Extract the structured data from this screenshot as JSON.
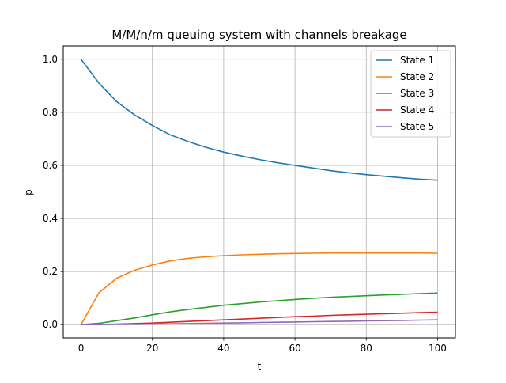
{
  "chart_data": {
    "type": "line",
    "title": "M/M/n/m queuing system with channels breakage",
    "xlabel": "t",
    "ylabel": "p",
    "xlim": [
      -5,
      105
    ],
    "ylim": [
      -0.05,
      1.05
    ],
    "xticks": [
      0,
      20,
      40,
      60,
      80,
      100
    ],
    "yticks": [
      0.0,
      0.2,
      0.4,
      0.6,
      0.8,
      1.0
    ],
    "xtick_labels": [
      "0",
      "20",
      "40",
      "60",
      "80",
      "100"
    ],
    "ytick_labels": [
      "0.0",
      "0.2",
      "0.4",
      "0.6",
      "0.8",
      "1.0"
    ],
    "grid": true,
    "legend_position": "top-right",
    "x": [
      0,
      5,
      10,
      15,
      20,
      25,
      30,
      35,
      40,
      45,
      50,
      55,
      60,
      65,
      70,
      75,
      80,
      85,
      90,
      95,
      100
    ],
    "series": [
      {
        "name": "State 1",
        "color": "#1f77b4",
        "values": [
          1.0,
          0.91,
          0.84,
          0.79,
          0.75,
          0.715,
          0.69,
          0.668,
          0.65,
          0.635,
          0.622,
          0.61,
          0.6,
          0.59,
          0.58,
          0.572,
          0.565,
          0.559,
          0.553,
          0.548,
          0.544
        ]
      },
      {
        "name": "State 2",
        "color": "#ff7f0e",
        "values": [
          0.0,
          0.12,
          0.175,
          0.205,
          0.225,
          0.24,
          0.25,
          0.256,
          0.26,
          0.263,
          0.265,
          0.267,
          0.268,
          0.269,
          0.27,
          0.27,
          0.27,
          0.27,
          0.27,
          0.27,
          0.269
        ]
      },
      {
        "name": "State 3",
        "color": "#2ca02c",
        "values": [
          0.0,
          0.005,
          0.015,
          0.025,
          0.037,
          0.048,
          0.057,
          0.065,
          0.073,
          0.079,
          0.085,
          0.09,
          0.095,
          0.099,
          0.103,
          0.106,
          0.109,
          0.112,
          0.114,
          0.117,
          0.119
        ]
      },
      {
        "name": "State 4",
        "color": "#d62728",
        "values": [
          0.0,
          0.001,
          0.002,
          0.004,
          0.006,
          0.009,
          0.012,
          0.015,
          0.018,
          0.021,
          0.024,
          0.027,
          0.03,
          0.032,
          0.035,
          0.037,
          0.039,
          0.041,
          0.043,
          0.045,
          0.047
        ]
      },
      {
        "name": "State 5",
        "color": "#9467bd",
        "values": [
          0.0,
          0.0,
          0.001,
          0.001,
          0.002,
          0.003,
          0.004,
          0.005,
          0.006,
          0.007,
          0.008,
          0.009,
          0.01,
          0.011,
          0.012,
          0.013,
          0.014,
          0.015,
          0.016,
          0.017,
          0.018
        ]
      }
    ]
  }
}
